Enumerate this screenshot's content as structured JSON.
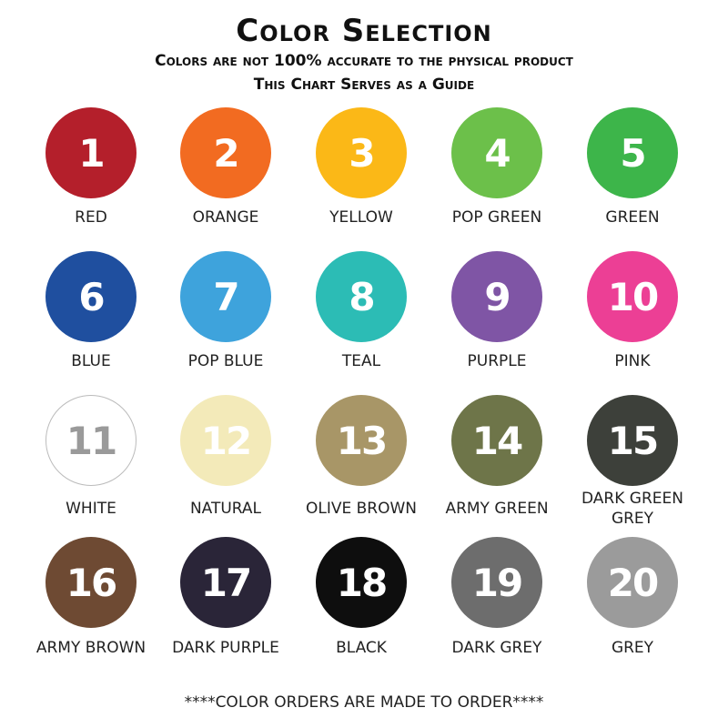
{
  "header": {
    "title": "Color Selection",
    "subtitle_1": "Colors are not 100% accurate to the physical product",
    "subtitle_2": "This Chart Serves as a Guide"
  },
  "colors": [
    {
      "number": "1",
      "name": "RED",
      "hex": "#b41f2b",
      "text": "#ffffff"
    },
    {
      "number": "2",
      "name": "ORANGE",
      "hex": "#f26b21",
      "text": "#ffffff"
    },
    {
      "number": "3",
      "name": "YELLOW",
      "hex": "#fbb817",
      "text": "#ffffff"
    },
    {
      "number": "4",
      "name": "POP GREEN",
      "hex": "#6cc04a",
      "text": "#ffffff"
    },
    {
      "number": "5",
      "name": "GREEN",
      "hex": "#3db54a",
      "text": "#ffffff"
    },
    {
      "number": "6",
      "name": "BLUE",
      "hex": "#1f4f9f",
      "text": "#ffffff"
    },
    {
      "number": "7",
      "name": "POP BLUE",
      "hex": "#3ea3dc",
      "text": "#ffffff"
    },
    {
      "number": "8",
      "name": "TEAL",
      "hex": "#2cbcb5",
      "text": "#ffffff"
    },
    {
      "number": "9",
      "name": "PURPLE",
      "hex": "#7f55a5",
      "text": "#ffffff"
    },
    {
      "number": "10",
      "name": "PINK",
      "hex": "#ec3f95",
      "text": "#ffffff"
    },
    {
      "number": "11",
      "name": "WHITE",
      "hex": "#ffffff",
      "text": "#9a9a9a"
    },
    {
      "number": "12",
      "name": "NATURAL",
      "hex": "#f3eab9",
      "text": "#ffffff"
    },
    {
      "number": "13",
      "name": "OLIVE BROWN",
      "hex": "#a89667",
      "text": "#ffffff"
    },
    {
      "number": "14",
      "name": "ARMY GREEN",
      "hex": "#6e7549",
      "text": "#ffffff"
    },
    {
      "number": "15",
      "name": "DARK GREEN GREY",
      "hex": "#3d403a",
      "text": "#ffffff"
    },
    {
      "number": "16",
      "name": "ARMY BROWN",
      "hex": "#6e4a33",
      "text": "#ffffff"
    },
    {
      "number": "17",
      "name": "DARK PURPLE",
      "hex": "#2a2538",
      "text": "#ffffff"
    },
    {
      "number": "18",
      "name": "BLACK",
      "hex": "#0e0e0e",
      "text": "#ffffff"
    },
    {
      "number": "19",
      "name": "DARK GREY",
      "hex": "#6d6d6d",
      "text": "#ffffff"
    },
    {
      "number": "20",
      "name": "GREY",
      "hex": "#9b9b9b",
      "text": "#ffffff"
    }
  ],
  "footer": "****COLOR ORDERS ARE MADE TO ORDER****"
}
